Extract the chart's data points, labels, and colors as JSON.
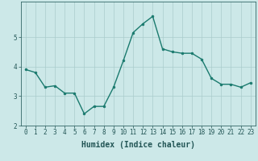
{
  "x": [
    0,
    1,
    2,
    3,
    4,
    5,
    6,
    7,
    8,
    9,
    10,
    11,
    12,
    13,
    14,
    15,
    16,
    17,
    18,
    19,
    20,
    21,
    22,
    23
  ],
  "y": [
    3.9,
    3.8,
    3.3,
    3.35,
    3.1,
    3.1,
    2.4,
    2.65,
    2.65,
    3.3,
    4.2,
    5.15,
    5.45,
    5.7,
    4.6,
    4.5,
    4.45,
    4.45,
    4.25,
    3.6,
    3.4,
    3.4,
    3.3,
    3.45
  ],
  "line_color": "#1a7a6e",
  "marker": "o",
  "markersize": 2.0,
  "linewidth": 1.0,
  "xlabel": "Humidex (Indice chaleur)",
  "xlim": [
    -0.5,
    23.5
  ],
  "ylim": [
    2.0,
    6.2
  ],
  "yticks": [
    2,
    3,
    4,
    5
  ],
  "xticks": [
    0,
    1,
    2,
    3,
    4,
    5,
    6,
    7,
    8,
    9,
    10,
    11,
    12,
    13,
    14,
    15,
    16,
    17,
    18,
    19,
    20,
    21,
    22,
    23
  ],
  "bg_color": "#cce8e8",
  "grid_color": "#aacccc",
  "line_axis_color": "#336666",
  "label_color": "#225555",
  "xlabel_fontsize": 7,
  "tick_fontsize": 5.5
}
